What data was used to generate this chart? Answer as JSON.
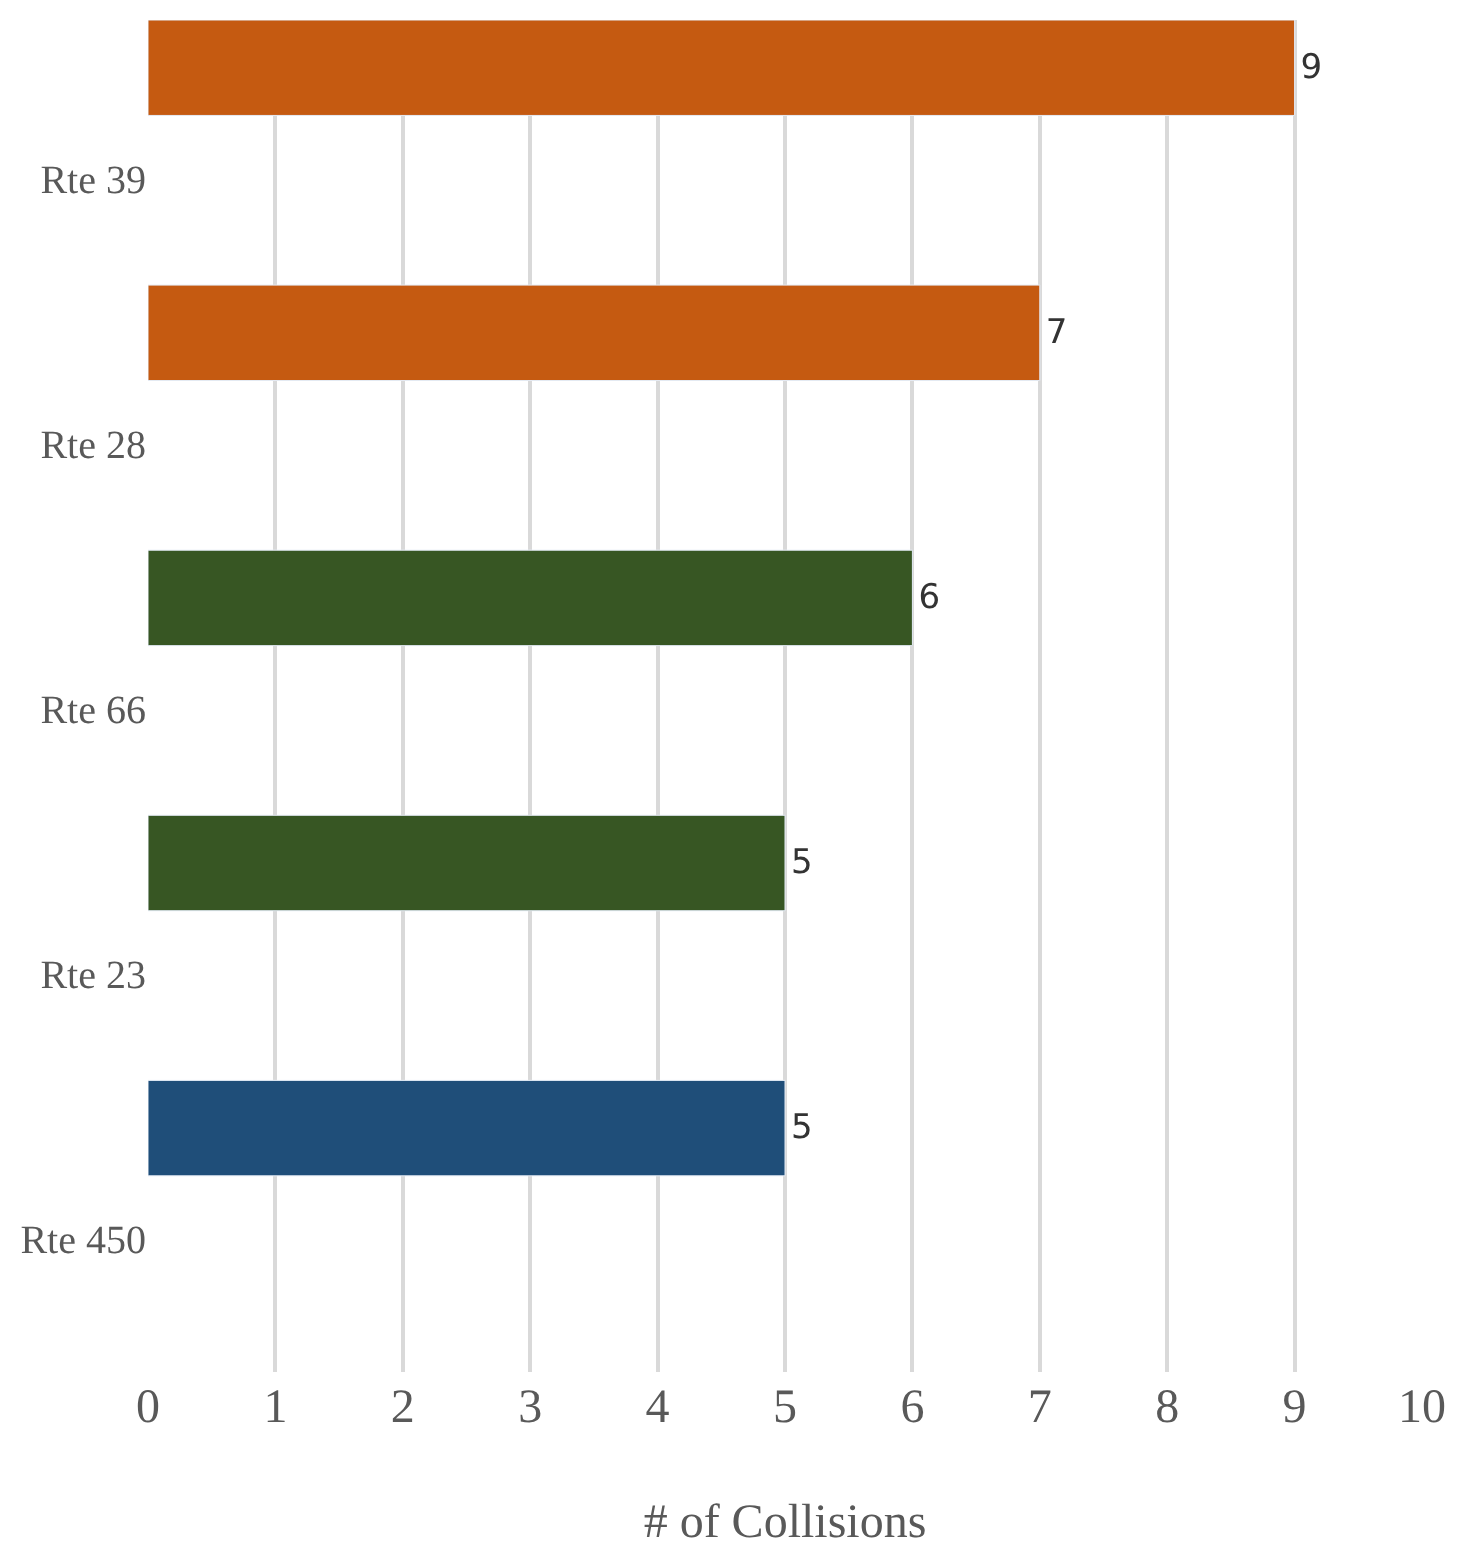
{
  "chart_data": {
    "type": "bar",
    "orientation": "horizontal",
    "xlabel": "# of Collisions",
    "categories": [
      "Rte 39",
      "Rte 28",
      "Rte 66",
      "Rte 23",
      "Rte 450"
    ],
    "values": [
      9,
      7,
      6,
      5,
      5
    ],
    "colors": [
      "#c55a11",
      "#c55a11",
      "#375623",
      "#375623",
      "#1f4e79"
    ],
    "xlim": [
      0,
      10
    ],
    "xticks": [
      0,
      1,
      2,
      3,
      4,
      5,
      6,
      7,
      8,
      9,
      10
    ],
    "grid": "x",
    "data_labels": true
  }
}
